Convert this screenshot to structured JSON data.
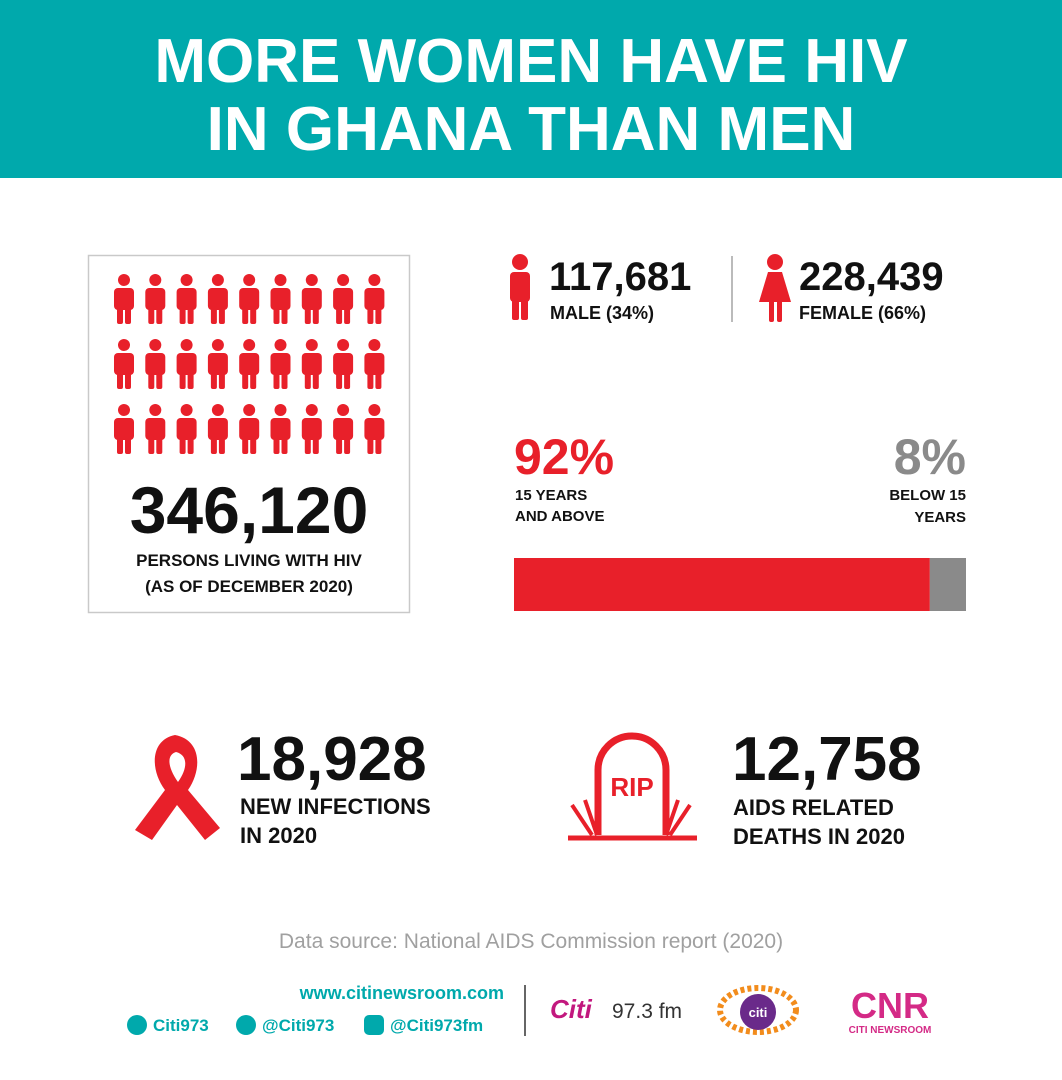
{
  "header": {
    "title_lines": [
      "MORE WOMEN HAVE HIV",
      "IN GHANA THAN MEN"
    ]
  },
  "total": {
    "value": "346,120",
    "caption_lines": [
      "PERSONS LIVING WITH HIV",
      "(AS OF DECEMBER 2020)"
    ]
  },
  "male": {
    "value": "117,681",
    "caption": "MALE (34%)"
  },
  "female": {
    "value": "228,439",
    "caption": "FEMALE (66%)"
  },
  "age_split": {
    "segments": [
      {
        "value": 92,
        "label": "92%",
        "caption_lines": [
          "15 YEARS",
          "AND ABOVE"
        ],
        "color": "#e8202a"
      },
      {
        "value": 8,
        "label": "8%",
        "caption_lines": [
          "BELOW 15",
          "YEARS"
        ],
        "color": "#8a8a8a"
      }
    ]
  },
  "new_infections": {
    "value": "18,928",
    "caption_lines": [
      "NEW INFECTIONS",
      "IN 2020"
    ]
  },
  "deaths": {
    "value": "12,758",
    "caption_lines": [
      "AIDS RELATED",
      "DEATHS IN 2020"
    ],
    "icon_text": "RIP"
  },
  "source": "Data source: National AIDS Commission report (2020)",
  "footer": {
    "url": "www.citinewsroom.com",
    "socials": [
      "Citi973",
      "@Citi973",
      "@Citi973fm"
    ],
    "logos": {
      "citi_fm": [
        "Citi",
        "97.3 fm"
      ],
      "citi_tv": "citi",
      "cnr": [
        "CNR",
        "CITI NEWSROOM"
      ]
    }
  }
}
